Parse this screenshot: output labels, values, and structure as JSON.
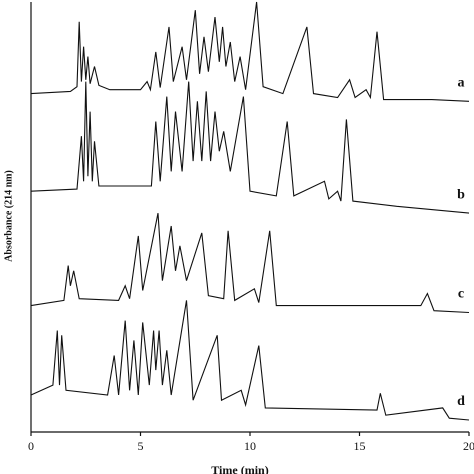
{
  "chart_data": {
    "type": "line",
    "xlabel": "Time (min)",
    "ylabel": "Absorbance (214 nm)",
    "xlim": [
      0,
      20
    ],
    "xticks": [
      0,
      5,
      10,
      15,
      20
    ],
    "ylim": [
      0,
      100
    ],
    "series": [
      {
        "name": "a",
        "color": "#111111",
        "x": [
          0,
          1.8,
          2.1,
          2.2,
          2.3,
          2.4,
          2.5,
          2.6,
          2.7,
          2.9,
          3.1,
          3.6,
          5.0,
          5.3,
          5.45,
          5.7,
          5.9,
          6.3,
          6.5,
          6.9,
          7.1,
          7.5,
          7.7,
          7.9,
          8.1,
          8.4,
          8.6,
          8.75,
          8.9,
          9.1,
          9.3,
          9.55,
          9.8,
          10.3,
          10.6,
          11.5,
          12.6,
          12.9,
          14.0,
          14.55,
          14.8,
          15.3,
          15.5,
          15.8,
          16.1,
          18.3,
          20
        ],
        "values": [
          78.7,
          79.2,
          80.3,
          95.4,
          81.5,
          89.6,
          81.9,
          87.3,
          81.0,
          85.0,
          80.6,
          79.6,
          79.6,
          81.5,
          79.6,
          88.4,
          80.1,
          94.2,
          81.5,
          89.6,
          81.9,
          98.1,
          83.3,
          91.9,
          83.8,
          96.5,
          86.1,
          94.2,
          85.0,
          90.7,
          81.5,
          87.3,
          79.6,
          100,
          80.3,
          78.7,
          94.2,
          78.7,
          77.8,
          81.9,
          77.8,
          79.6,
          77.8,
          93.1,
          77.3,
          77.3,
          76.9
        ]
      },
      {
        "name": "b",
        "color": "#111111",
        "x": [
          0,
          2.1,
          2.3,
          2.4,
          2.5,
          2.6,
          2.7,
          2.8,
          2.9,
          3.1,
          5.5,
          5.7,
          5.9,
          6.2,
          6.4,
          6.6,
          6.9,
          7.2,
          7.4,
          7.6,
          7.8,
          8.0,
          8.2,
          8.4,
          8.6,
          8.8,
          9.1,
          9.7,
          10.0,
          11.2,
          11.7,
          12.0,
          13.4,
          13.6,
          14.0,
          14.15,
          14.4,
          14.7,
          16.7,
          20
        ],
        "values": [
          56.0,
          56.5,
          68.8,
          58.3,
          81.5,
          59.5,
          74.5,
          58.3,
          67.6,
          57.2,
          57.2,
          72.2,
          58.3,
          78.0,
          60.6,
          74.5,
          60.6,
          81.5,
          63.0,
          76.9,
          63.0,
          79.2,
          63.0,
          74.5,
          65.3,
          69.9,
          60.6,
          78.0,
          56.0,
          54.9,
          72.2,
          54.9,
          58.3,
          54.2,
          56.0,
          53.7,
          72.7,
          53.7,
          52.5,
          50.9
        ]
      },
      {
        "name": "c",
        "color": "#111111",
        "x": [
          0,
          1.5,
          1.7,
          1.8,
          1.95,
          2.2,
          4.0,
          4.3,
          4.5,
          4.9,
          5.1,
          5.8,
          6.0,
          6.4,
          6.6,
          6.8,
          7.1,
          7.8,
          8.1,
          8.8,
          9.0,
          9.3,
          10.2,
          10.4,
          10.9,
          11.2,
          17.8,
          18.1,
          18.4,
          20
        ],
        "values": [
          29.4,
          30.6,
          38.7,
          34.0,
          37.5,
          31.0,
          30.6,
          34.0,
          31.0,
          45.6,
          32.9,
          50.9,
          35.2,
          47.9,
          37.5,
          43.3,
          35.2,
          46.3,
          31.7,
          31.0,
          46.8,
          30.6,
          33.3,
          30.1,
          46.8,
          29.4,
          29.4,
          32.2,
          28.2,
          27.8
        ]
      },
      {
        "name": "d",
        "color": "#111111",
        "x": [
          0,
          1.0,
          1.2,
          1.3,
          1.4,
          1.6,
          3.5,
          3.8,
          4.0,
          4.3,
          4.5,
          4.7,
          4.9,
          5.1,
          5.4,
          5.6,
          5.7,
          5.85,
          6.0,
          6.2,
          6.4,
          7.1,
          7.4,
          8.5,
          8.7,
          9.6,
          9.8,
          10.4,
          10.7,
          15.8,
          15.95,
          16.2,
          18.8,
          19.1,
          20
        ],
        "values": [
          8.6,
          10.9,
          23.6,
          10.9,
          22.5,
          9.7,
          8.6,
          17.8,
          8.6,
          25.9,
          9.7,
          21.3,
          8.6,
          25.5,
          10.9,
          23.6,
          14.4,
          23.6,
          10.9,
          19.0,
          8.6,
          30.6,
          7.4,
          22.5,
          7.4,
          9.7,
          6.3,
          20.1,
          5.6,
          5.1,
          9.0,
          3.9,
          5.6,
          3.2,
          2.8
        ]
      }
    ]
  }
}
